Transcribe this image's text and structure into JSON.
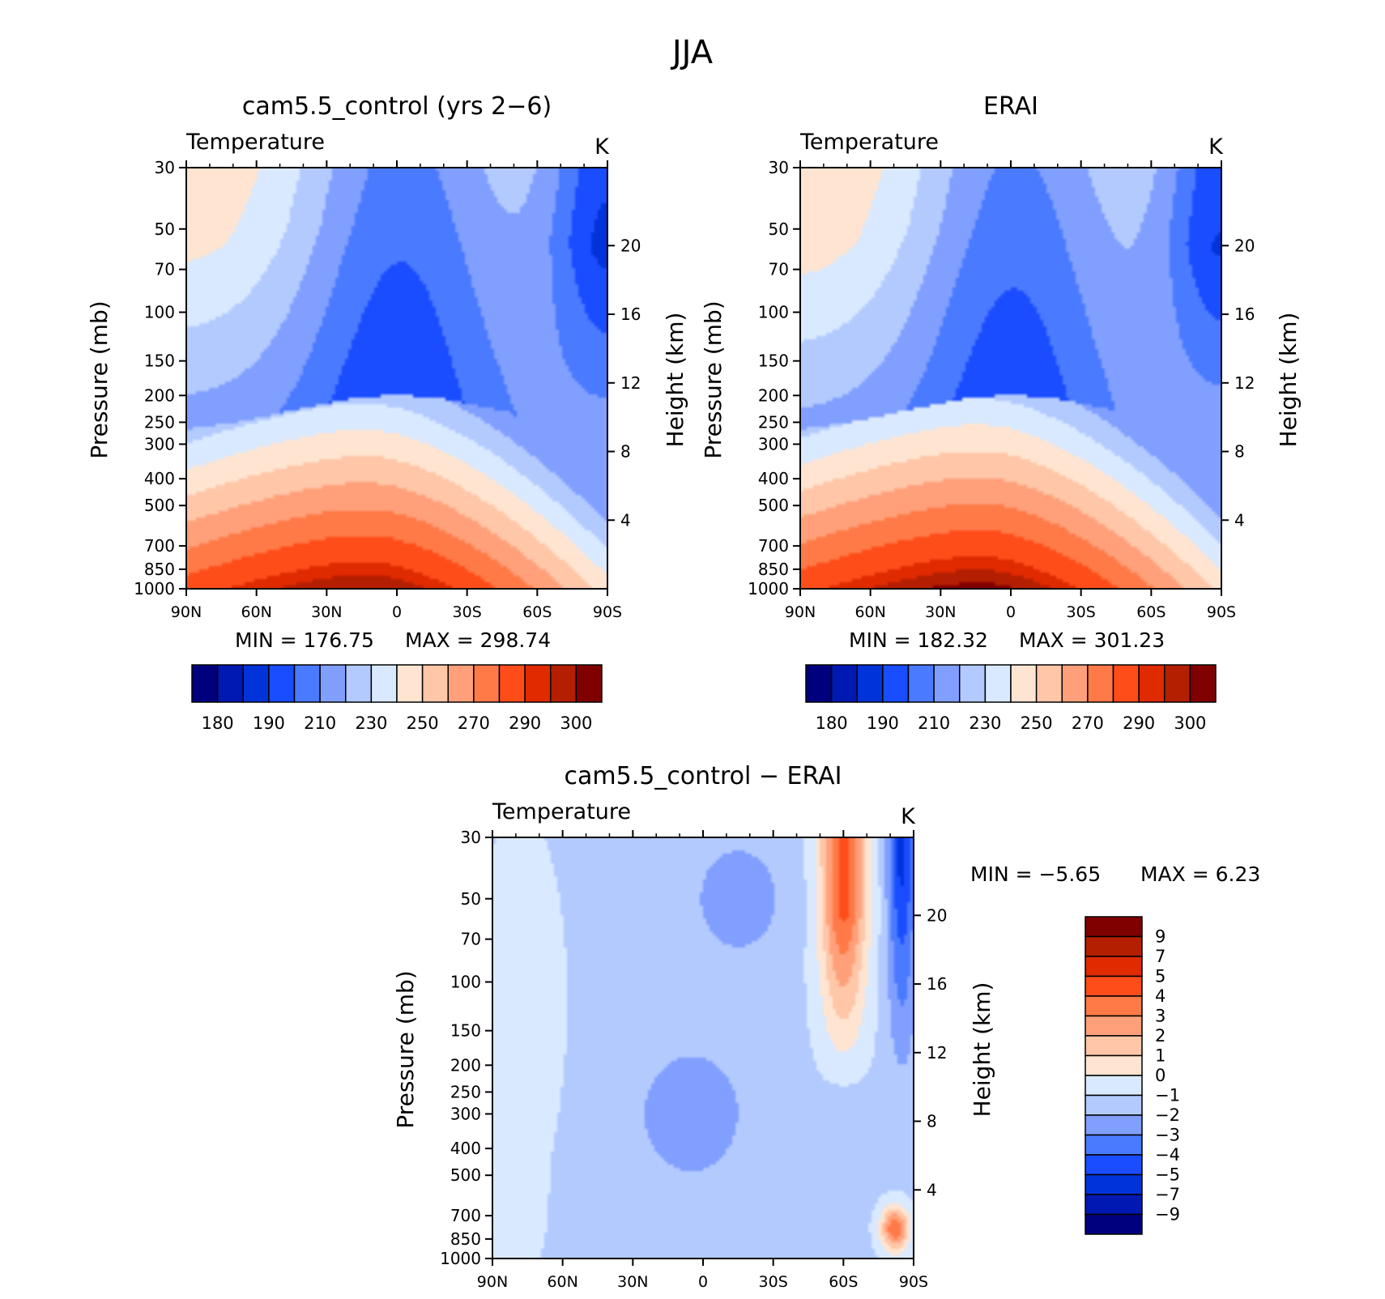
{
  "figure_title": "JJA",
  "colors": {
    "abs_palette": [
      "#00007f",
      "#0019b2",
      "#0033d9",
      "#1a4dff",
      "#4a7aff",
      "#809fff",
      "#b3caff",
      "#d9e9ff",
      "#ffe5d1",
      "#ffc6a8",
      "#ffa07a",
      "#ff7a47",
      "#ff4d1a",
      "#e02a00",
      "#b31f00",
      "#800000"
    ],
    "diff_palette": [
      "#00007f",
      "#0019b2",
      "#0033d9",
      "#1a4dff",
      "#4a7aff",
      "#809fff",
      "#b3caff",
      "#d9e9ff",
      "#ffe5d1",
      "#ffc6a8",
      "#ffa07a",
      "#ff7a47",
      "#ff4d1a",
      "#e02a00",
      "#b31f00",
      "#800000"
    ]
  },
  "chart_data": [
    {
      "type": "heatmap",
      "title": "cam5.5_control (yrs 2−6)",
      "subtitle": "Temperature",
      "units": "K",
      "ylabel": "Pressure (mb)",
      "y2label": "Height (km)",
      "x_ticks": [
        "90N",
        "60N",
        "30N",
        "0",
        "30S",
        "60S",
        "90S"
      ],
      "y_ticks": [
        "30",
        "50",
        "70",
        "100",
        "150",
        "200",
        "250",
        "300",
        "400",
        "500",
        "700",
        "850",
        "1000"
      ],
      "y_tick_values": [
        30,
        50,
        70,
        100,
        150,
        200,
        250,
        300,
        400,
        500,
        700,
        850,
        1000
      ],
      "y2_ticks": [
        "4",
        "8",
        "12",
        "16",
        "20"
      ],
      "y2_tick_values": [
        4,
        8,
        12,
        16,
        20
      ],
      "ylim": [
        1000,
        30
      ],
      "xlim": [
        90,
        -90
      ],
      "min_label": "MIN  =  176.75",
      "max_label": "MAX  =  298.74",
      "min": 176.75,
      "max": 298.74,
      "model": "model",
      "colorbar_labels": [
        "180",
        "190",
        "210",
        "230",
        "250",
        "270",
        "290",
        "300"
      ]
    },
    {
      "type": "heatmap",
      "title": "ERAI",
      "subtitle": "Temperature",
      "units": "K",
      "ylabel": "Pressure (mb)",
      "y2label": "Height (km)",
      "x_ticks": [
        "90N",
        "60N",
        "30N",
        "0",
        "30S",
        "60S",
        "90S"
      ],
      "y_ticks": [
        "30",
        "50",
        "70",
        "100",
        "150",
        "200",
        "250",
        "300",
        "400",
        "500",
        "700",
        "850",
        "1000"
      ],
      "y_tick_values": [
        30,
        50,
        70,
        100,
        150,
        200,
        250,
        300,
        400,
        500,
        700,
        850,
        1000
      ],
      "y2_ticks": [
        "4",
        "8",
        "12",
        "16",
        "20"
      ],
      "y2_tick_values": [
        4,
        8,
        12,
        16,
        20
      ],
      "ylim": [
        1000,
        30
      ],
      "xlim": [
        90,
        -90
      ],
      "min_label": "MIN  =  182.32",
      "max_label": "MAX  =  301.23",
      "min": 182.32,
      "max": 301.23,
      "model": "obs",
      "colorbar_labels": [
        "180",
        "190",
        "210",
        "230",
        "250",
        "270",
        "290",
        "300"
      ]
    },
    {
      "type": "heatmap",
      "title": "cam5.5_control − ERAI",
      "subtitle": "Temperature",
      "units": "K",
      "ylabel": "Pressure (mb)",
      "y2label": "Height (km)",
      "x_ticks": [
        "90N",
        "60N",
        "30N",
        "0",
        "30S",
        "60S",
        "90S"
      ],
      "y_ticks": [
        "30",
        "50",
        "70",
        "100",
        "150",
        "200",
        "250",
        "300",
        "400",
        "500",
        "700",
        "850",
        "1000"
      ],
      "y_tick_values": [
        30,
        50,
        70,
        100,
        150,
        200,
        250,
        300,
        400,
        500,
        700,
        850,
        1000
      ],
      "y2_ticks": [
        "4",
        "8",
        "12",
        "16",
        "20"
      ],
      "y2_tick_values": [
        4,
        8,
        12,
        16,
        20
      ],
      "ylim": [
        1000,
        30
      ],
      "xlim": [
        90,
        -90
      ],
      "min_label": "MIN  =     −5.65",
      "max_label": "MAX  =      6.23",
      "min": -5.65,
      "max": 6.23,
      "model": "diff",
      "colorbar_labels": [
        "9",
        "7",
        "5",
        "4",
        "3",
        "2",
        "1",
        "0",
        "−1",
        "−2",
        "−3",
        "−4",
        "−5",
        "−7",
        "−9"
      ]
    }
  ]
}
